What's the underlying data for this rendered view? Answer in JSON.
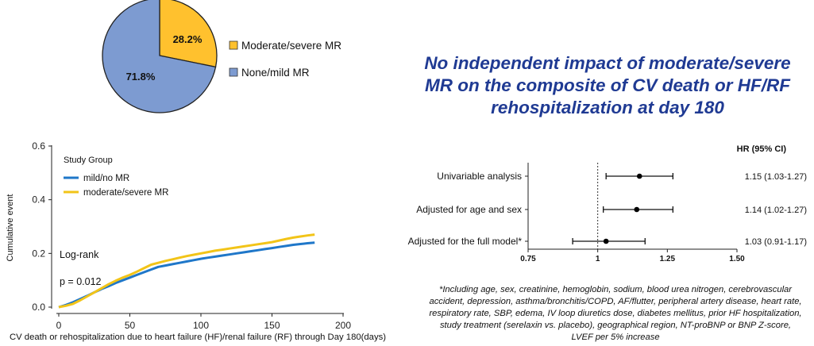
{
  "takeaway": "No independent impact of moderate/severe MR on the composite of CV death or HF/RF rehospitalization at day 180",
  "footnote": "*Including age, sex, creatinine, hemoglobin, sodium, blood urea nitrogen, cerebrovascular accident, depression, asthma/bronchitis/COPD, AF/flutter, peripheral artery disease, heart rate, respiratory rate, SBP, edema, IV loop diuretics dose, diabetes mellitus, prior HF hospitalization, study treatment (serelaxin vs. placebo), geographical region, NT-proBNP or BNP Z-score, LVEF per 5% increase",
  "chart_data": [
    {
      "type": "pie",
      "slices": [
        {
          "label": "Moderate/severe MR",
          "value": 28.2,
          "value_label": "28.2%",
          "color": "#ffc12e"
        },
        {
          "label": "None/mild MR",
          "value": 71.8,
          "value_label": "71.8%",
          "color": "#7d9bd1"
        }
      ],
      "legend_placement": "right"
    },
    {
      "type": "line",
      "xlabel": "CV death or rehospitalization due to heart failure (HF)/renal failure (RF) through Day 180(days)",
      "ylabel": "Cumulative event",
      "xlim": [
        0,
        200
      ],
      "ylim": [
        0,
        0.6
      ],
      "x_ticks": [
        "0",
        "50",
        "100",
        "150",
        "200"
      ],
      "y_ticks": [
        "0.0",
        "0.2",
        "0.4",
        "0.6"
      ],
      "legend_title": "Study Group",
      "legend_placement": "top-left",
      "annotations": [
        "Log-rank",
        "p = 0.012"
      ],
      "grid": false,
      "series": [
        {
          "name": "mild/no MR",
          "color": "#1f77c9",
          "x": [
            0,
            5,
            10,
            15,
            20,
            25,
            30,
            35,
            40,
            45,
            50,
            55,
            60,
            65,
            70,
            75,
            80,
            85,
            90,
            95,
            100,
            105,
            110,
            115,
            120,
            125,
            130,
            135,
            140,
            145,
            150,
            155,
            160,
            165,
            170,
            175,
            180
          ],
          "y": [
            0.0,
            0.008,
            0.018,
            0.03,
            0.042,
            0.055,
            0.067,
            0.078,
            0.09,
            0.1,
            0.11,
            0.12,
            0.13,
            0.14,
            0.15,
            0.155,
            0.16,
            0.165,
            0.17,
            0.175,
            0.18,
            0.184,
            0.188,
            0.192,
            0.196,
            0.2,
            0.204,
            0.208,
            0.212,
            0.216,
            0.22,
            0.224,
            0.228,
            0.232,
            0.235,
            0.238,
            0.24
          ]
        },
        {
          "name": "moderate/severe MR",
          "color": "#f2c418",
          "x": [
            0,
            5,
            10,
            15,
            20,
            25,
            30,
            35,
            40,
            45,
            50,
            55,
            60,
            65,
            70,
            75,
            80,
            85,
            90,
            95,
            100,
            105,
            110,
            115,
            120,
            125,
            130,
            135,
            140,
            145,
            150,
            155,
            160,
            165,
            170,
            175,
            180
          ],
          "y": [
            0.0,
            0.005,
            0.012,
            0.025,
            0.04,
            0.055,
            0.07,
            0.085,
            0.098,
            0.11,
            0.12,
            0.132,
            0.145,
            0.158,
            0.165,
            0.172,
            0.178,
            0.184,
            0.19,
            0.195,
            0.2,
            0.205,
            0.21,
            0.214,
            0.218,
            0.222,
            0.226,
            0.23,
            0.234,
            0.238,
            0.242,
            0.248,
            0.254,
            0.259,
            0.263,
            0.267,
            0.27
          ]
        }
      ]
    },
    {
      "type": "forest",
      "header": "HR (95% CI)",
      "xlim": [
        0.75,
        1.5
      ],
      "x_ticks": [
        "0.75",
        "1",
        "1.25",
        "1.50"
      ],
      "reference_line": 1,
      "rows": [
        {
          "label": "Univariable analysis",
          "hr": 1.15,
          "lo": 1.03,
          "hi": 1.27,
          "text": "1.15 (1.03-1.27)"
        },
        {
          "label": "Adjusted for age and sex",
          "hr": 1.14,
          "lo": 1.02,
          "hi": 1.27,
          "text": "1.14 (1.02-1.27)"
        },
        {
          "label": "Adjusted for the full model*",
          "hr": 1.03,
          "lo": 0.91,
          "hi": 1.17,
          "text": "1.03 (0.91-1.17)"
        }
      ]
    }
  ]
}
